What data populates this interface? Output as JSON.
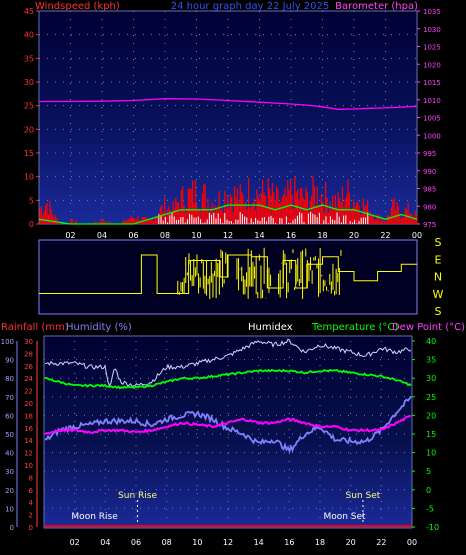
{
  "header": {
    "left_label": "Windspeed (kph)",
    "center_label": "24 hour graph day  22 July 2025",
    "right_label": "Barometer (hpa)"
  },
  "wind_dir": {
    "labels": [
      "S",
      "E",
      "N",
      "W",
      "S"
    ]
  },
  "lower_header": {
    "rainfall": "Rainfall (mm)",
    "humidity": "Humidity (%)",
    "humidex": "Humidex",
    "temperature": "Temperature (°C)",
    "dewpoint": "Dew Point (°C)"
  },
  "annotations": {
    "sun_rise": "Sun Rise",
    "sun_set": "Sun Set",
    "moon_rise": "Moon Rise",
    "moon_set": "Moon Set",
    "sun_rise_hour": 6.1,
    "sun_set_hour": 20.8,
    "moon_rise_hour": 3.3,
    "moon_set_hour": 19.6
  },
  "colors": {
    "wind": "#ff0000",
    "gust_fill": "#ff0000",
    "wind_avg": "#00ff00",
    "barometer": "#ff00ff",
    "wind_dir": "#ffff00",
    "humidex": "#d0d8ff",
    "temperature": "#00ff00",
    "dewpoint": "#ff00ff",
    "humidity": "#8080ff",
    "rain": "#ff0000"
  },
  "chart_data": [
    {
      "type": "area",
      "title": "24 hour graph day  22 July 2025",
      "x_ticks": [
        "02",
        "04",
        "06",
        "08",
        "10",
        "12",
        "14",
        "16",
        "18",
        "20",
        "22",
        "00"
      ],
      "xlim": [
        0,
        24
      ],
      "ylabel": "Windspeed (kph)",
      "ylim": [
        0,
        45
      ],
      "y_ticks": [
        0,
        5,
        10,
        15,
        20,
        25,
        30,
        35,
        40,
        45
      ],
      "y2label": "Barometer (hpa)",
      "y2lim": [
        975,
        1035
      ],
      "y2_ticks": [
        975,
        980,
        985,
        990,
        995,
        1000,
        1005,
        1010,
        1015,
        1020,
        1025,
        1030,
        1035
      ],
      "grid": true,
      "series": [
        {
          "name": "Windspeed (kph)",
          "axis": "left",
          "x": [
            0,
            0.5,
            1,
            1.5,
            2,
            3,
            4,
            5,
            6,
            7,
            7.5,
            8,
            8.5,
            9,
            9.5,
            10,
            10.5,
            11,
            11.5,
            12,
            12.5,
            13,
            13.5,
            14,
            14.5,
            15,
            15.5,
            16,
            16.5,
            17,
            17.5,
            18,
            18.5,
            19,
            19.5,
            20,
            20.5,
            21,
            21.5,
            22,
            22.5,
            23,
            23.5,
            24
          ],
          "y": [
            4,
            6,
            2,
            0,
            1,
            0,
            1,
            0,
            2,
            1,
            3,
            5,
            4,
            7,
            8,
            9,
            8,
            6,
            7,
            9,
            8,
            7,
            10,
            8,
            9,
            7,
            6,
            9,
            8,
            7,
            9,
            8,
            7,
            6,
            9,
            7,
            6,
            4,
            2,
            1,
            5,
            3,
            4,
            2
          ]
        },
        {
          "name": "Wind average",
          "axis": "left",
          "x": [
            0,
            2,
            4,
            6,
            7,
            8,
            9,
            10,
            11,
            12,
            13,
            14,
            15,
            16,
            17,
            18,
            19,
            20,
            21,
            22,
            23,
            24
          ],
          "y": [
            1,
            0,
            0,
            0,
            1,
            2,
            3,
            3,
            3,
            4,
            4,
            4,
            3,
            4,
            3,
            4,
            3,
            3,
            2,
            1,
            2,
            1
          ]
        },
        {
          "name": "Barometer (hpa)",
          "axis": "right",
          "x": [
            0,
            2,
            4,
            6,
            8,
            10,
            12,
            14,
            16,
            17,
            18,
            19,
            20,
            21,
            22,
            23,
            24
          ],
          "y": [
            1009.5,
            1009.5,
            1009.6,
            1009.8,
            1010.3,
            1010.2,
            1009.8,
            1009.3,
            1008.8,
            1008.5,
            1008.0,
            1007.3,
            1007.4,
            1007.6,
            1007.7,
            1007.9,
            1008.2
          ]
        }
      ]
    },
    {
      "type": "line",
      "ylabel": "Wind direction",
      "y_ticks": [
        "S",
        "E",
        "N",
        "W",
        "S"
      ],
      "ylim": [
        0,
        360
      ],
      "xlim": [
        0,
        24
      ],
      "series": [
        {
          "name": "Wind direction",
          "x": [
            0,
            4,
            6.5,
            7.0,
            7.5,
            8.0,
            9.5,
            10.2,
            11.5,
            12.0,
            13.5,
            14.5,
            15.5,
            16.3,
            17.0,
            18.0,
            19.0,
            20.0,
            20.8,
            21.5,
            23.0,
            24
          ],
          "y": [
            90,
            90,
            300,
            300,
            90,
            90,
            270,
            270,
            180,
            300,
            290,
            120,
            270,
            120,
            250,
            290,
            210,
            160,
            160,
            210,
            250,
            250
          ]
        }
      ]
    },
    {
      "type": "line",
      "x_ticks": [
        "02",
        "04",
        "06",
        "08",
        "10",
        "12",
        "14",
        "16",
        "18",
        "20",
        "22",
        "00"
      ],
      "xlim": [
        0,
        24
      ],
      "ylabel": "Temperature (°C)",
      "ylim": [
        -10,
        40
      ],
      "y_ticks": [
        -10,
        -5,
        0,
        5,
        10,
        15,
        20,
        25,
        30,
        35,
        40
      ],
      "humidity_ticks": [
        0,
        10,
        20,
        30,
        40,
        50,
        60,
        70,
        80,
        90,
        100
      ],
      "rain_ticks": [
        0,
        2,
        4,
        6,
        8,
        10,
        12,
        14,
        16,
        18,
        20,
        22,
        24,
        26,
        28,
        30
      ],
      "grid": true,
      "series": [
        {
          "name": "Humidex",
          "x": [
            0,
            1,
            2,
            3,
            4,
            4.3,
            4.6,
            5,
            6,
            7,
            8,
            9,
            10,
            11,
            12,
            13,
            14,
            15,
            16,
            17,
            18,
            19,
            20,
            21,
            22,
            23,
            24
          ],
          "y": [
            34,
            34,
            34,
            33,
            33,
            27,
            33,
            29,
            28,
            29,
            33,
            33,
            34,
            35,
            36,
            38,
            40,
            39,
            40,
            37,
            39,
            38,
            37,
            36,
            38,
            37,
            38
          ]
        },
        {
          "name": "Temperature (°C)",
          "x": [
            0,
            1,
            2,
            3,
            4,
            5,
            6,
            7,
            8,
            9,
            10,
            11,
            12,
            13,
            14,
            15,
            16,
            17,
            18,
            19,
            20,
            21,
            22,
            23,
            24
          ],
          "y": [
            30,
            29,
            28,
            28,
            28,
            27.5,
            27.5,
            28,
            29,
            30,
            30,
            30.5,
            31,
            31.5,
            32,
            32,
            32,
            31.5,
            32,
            32,
            31.5,
            31,
            30.5,
            29.5,
            28
          ]
        },
        {
          "name": "Dew Point (°C)",
          "x": [
            0,
            1,
            2,
            3,
            4,
            5,
            6,
            7,
            8,
            9,
            10,
            11,
            12,
            13,
            14,
            15,
            16,
            17,
            18,
            19,
            20,
            21,
            22,
            23,
            24
          ],
          "y": [
            15,
            16,
            16,
            15.5,
            16,
            16,
            15.5,
            16,
            17,
            18,
            17.5,
            17,
            18,
            19,
            18,
            18,
            19,
            18,
            17,
            17,
            16,
            16,
            16,
            18,
            20
          ]
        },
        {
          "name": "Humidity (%)",
          "axis": "humidity",
          "x": [
            0,
            1,
            2,
            3,
            4,
            5,
            6,
            7,
            8,
            9,
            10,
            11,
            12,
            13,
            14,
            15,
            16,
            17,
            18,
            19,
            20,
            21,
            22,
            23,
            24
          ],
          "y": [
            46,
            52,
            54,
            55,
            57,
            57,
            57,
            55,
            58,
            60,
            61,
            58,
            53,
            50,
            45,
            47,
            41,
            50,
            54,
            47,
            46,
            46,
            52,
            62,
            70
          ]
        },
        {
          "name": "Rainfall (mm)",
          "axis": "rain",
          "x": [
            0,
            24
          ],
          "y": [
            0,
            0
          ]
        }
      ]
    }
  ]
}
